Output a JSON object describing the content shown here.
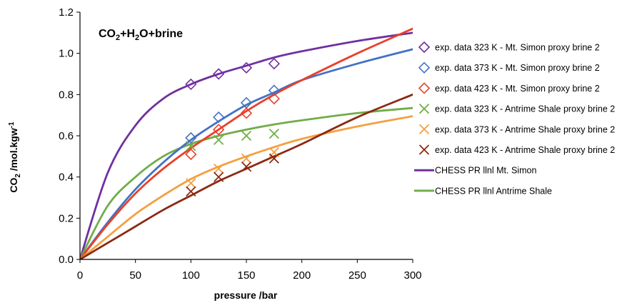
{
  "chart_data": {
    "type": "scatter",
    "title": "",
    "annotation": {
      "base": "CO",
      "sub1": "2",
      "mid": "+H",
      "sub2": "2",
      "end": "O+brine"
    },
    "xlabel": "pressure /bar",
    "ylabel": {
      "base": "CO",
      "sub": "2",
      "rest": " /mol.kgw",
      "sup": "-1"
    },
    "xlim": [
      0,
      300
    ],
    "ylim": [
      0,
      1.2
    ],
    "xticks": [
      "0",
      "50",
      "100",
      "150",
      "200",
      "250",
      "300"
    ],
    "yticks": [
      "0.0",
      "0.2",
      "0.4",
      "0.6",
      "0.8",
      "1.0",
      "1.2"
    ],
    "grid": false,
    "legend_position": "right",
    "series": [
      {
        "name": "exp. data 323 K - Mt. Simon proxy brine 2",
        "marker": "diamond",
        "color": "#7030a0",
        "x": [
          100,
          125,
          150,
          175
        ],
        "y": [
          0.85,
          0.9,
          0.93,
          0.95
        ]
      },
      {
        "name": "exp. data 373 K - Mt. Simon proxy brine 2",
        "marker": "diamond",
        "color": "#4472c4",
        "x": [
          100,
          125,
          150,
          175
        ],
        "y": [
          0.59,
          0.69,
          0.76,
          0.82
        ]
      },
      {
        "name": "exp. data 423 K - Mt. Simon proxy brine 2",
        "marker": "diamond",
        "color": "#e8402a",
        "x": [
          100,
          125,
          150,
          175
        ],
        "y": [
          0.51,
          0.63,
          0.71,
          0.78
        ]
      },
      {
        "name": "exp. data 323 K - Antrime Shale proxy brine 2",
        "marker": "cross",
        "color": "#70ad47",
        "x": [
          100,
          125,
          150,
          175
        ],
        "y": [
          0.55,
          0.58,
          0.6,
          0.61
        ]
      },
      {
        "name": "exp. data 373 K - Antrime Shale proxy brine 2",
        "marker": "cross",
        "color": "#f4a040",
        "x": [
          100,
          125,
          150,
          175
        ],
        "y": [
          0.37,
          0.44,
          0.49,
          0.52
        ]
      },
      {
        "name": "exp. data 423 K - Antrime Shale proxy brine 2",
        "marker": "cross",
        "color": "#8b2a14",
        "x": [
          100,
          125,
          150,
          175
        ],
        "y": [
          0.33,
          0.4,
          0.45,
          0.49
        ]
      },
      {
        "name": "CHESS PR llnl Mt. Simon",
        "marker": "line",
        "color": "#7030a0",
        "x": [
          0,
          25,
          50,
          75,
          100,
          125,
          150,
          175,
          200,
          250,
          300
        ],
        "y": [
          0,
          0.42,
          0.65,
          0.78,
          0.85,
          0.9,
          0.94,
          0.98,
          1.01,
          1.06,
          1.1
        ]
      },
      {
        "name": "CHESS PR llnl Antrime Shale",
        "marker": "line",
        "color": "#70ad47",
        "x": [
          0,
          25,
          50,
          75,
          100,
          125,
          150,
          175,
          200,
          250,
          300
        ],
        "y": [
          0,
          0.26,
          0.4,
          0.5,
          0.56,
          0.6,
          0.63,
          0.655,
          0.675,
          0.71,
          0.735
        ]
      },
      {
        "name": "",
        "marker": "line",
        "color": "#4472c4",
        "x": [
          0,
          25,
          50,
          75,
          100,
          125,
          150,
          175,
          200,
          250,
          300
        ],
        "y": [
          0,
          0.18,
          0.34,
          0.47,
          0.58,
          0.67,
          0.75,
          0.81,
          0.87,
          0.95,
          1.02
        ]
      },
      {
        "name": "",
        "marker": "line",
        "color": "#e8402a",
        "x": [
          0,
          25,
          50,
          75,
          100,
          125,
          150,
          175,
          200,
          250,
          300
        ],
        "y": [
          0,
          0.17,
          0.32,
          0.44,
          0.54,
          0.63,
          0.72,
          0.8,
          0.87,
          1.0,
          1.12
        ]
      },
      {
        "name": "",
        "marker": "line",
        "color": "#f4a040",
        "x": [
          0,
          25,
          50,
          75,
          100,
          125,
          150,
          175,
          200,
          250,
          300
        ],
        "y": [
          0,
          0.11,
          0.22,
          0.31,
          0.39,
          0.45,
          0.5,
          0.545,
          0.585,
          0.645,
          0.695
        ]
      },
      {
        "name": "",
        "marker": "line",
        "color": "#8b2a14",
        "x": [
          0,
          25,
          50,
          75,
          100,
          125,
          150,
          175,
          200,
          250,
          300
        ],
        "y": [
          0,
          0.08,
          0.16,
          0.24,
          0.31,
          0.38,
          0.44,
          0.5,
          0.56,
          0.69,
          0.8
        ]
      }
    ]
  }
}
